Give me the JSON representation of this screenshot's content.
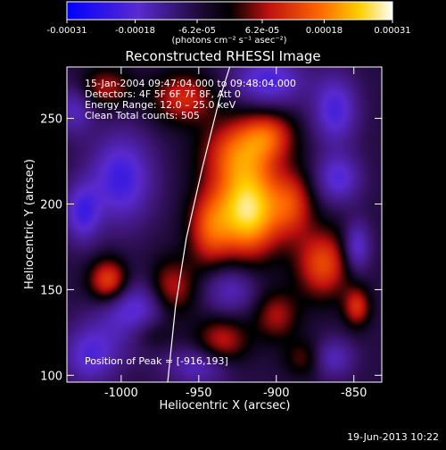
{
  "colorbar": {
    "ticks": [
      "-0.00031",
      "-0.00018",
      "-6.2e-05",
      "6.2e-05",
      "0.00018",
      "0.00031"
    ],
    "tick_values": [
      -0.00031,
      -0.00018,
      -6.2e-05,
      6.2e-05,
      0.00018,
      0.00031
    ],
    "range": [
      -0.00031,
      0.00031
    ],
    "units_label": "(photons cm⁻² s⁻¹ asec⁻²)"
  },
  "annotations": {
    "time_range": "15-Jan-2004 09:47:04.000 to 09:48:04.000",
    "detectors": "Detectors: 4F 5F 6F 7F 8F, Att 0",
    "energy": "Energy Range: 12.0 – 25.0 keV",
    "clean": "Clean    Total counts: 505",
    "peak": "Position of Peak = [-916,193]"
  },
  "footer": {
    "timestamp": "19-Jun-2013 10:22"
  },
  "chart_data": {
    "type": "heatmap",
    "title": "Reconstructed RHESSI Image",
    "xlabel": "Heliocentric X (arcsec)",
    "ylabel": "Heliocentric Y (arcsec)",
    "xlim": [
      -1035,
      -832
    ],
    "ylim": [
      96,
      280
    ],
    "xticks": [
      -1000,
      -950,
      -900,
      -850
    ],
    "yticks": [
      100,
      150,
      200,
      250
    ],
    "xtick_labels": [
      "-1000",
      "-950",
      "-900",
      "-850"
    ],
    "ytick_labels": [
      "100",
      "150",
      "200",
      "250"
    ],
    "colormap": "red-temperature (blue → purple → black → red → orange → yellow → white)",
    "peak_position": [
      -916,
      193
    ],
    "limb_curve": [
      [
        -970,
        96
      ],
      [
        -965,
        140
      ],
      [
        -958,
        180
      ],
      [
        -948,
        220
      ],
      [
        -937,
        260
      ],
      [
        -930,
        280
      ]
    ],
    "blobs": [
      {
        "x": -918,
        "y": 196,
        "amp": 1.0,
        "sx": 14,
        "sy": 18
      },
      {
        "x": -925,
        "y": 230,
        "amp": 0.55,
        "sx": 16,
        "sy": 14
      },
      {
        "x": -943,
        "y": 186,
        "amp": 0.5,
        "sx": 10,
        "sy": 16
      },
      {
        "x": -905,
        "y": 240,
        "amp": 0.45,
        "sx": 12,
        "sy": 10
      },
      {
        "x": -890,
        "y": 200,
        "amp": 0.45,
        "sx": 10,
        "sy": 14
      },
      {
        "x": -870,
        "y": 165,
        "amp": 0.55,
        "sx": 12,
        "sy": 14
      },
      {
        "x": -1008,
        "y": 155,
        "amp": 0.6,
        "sx": 9,
        "sy": 9
      },
      {
        "x": -968,
        "y": 150,
        "amp": 0.45,
        "sx": 11,
        "sy": 12
      },
      {
        "x": -982,
        "y": 125,
        "amp": 0.35,
        "sx": 12,
        "sy": 8
      },
      {
        "x": -960,
        "y": 262,
        "amp": 0.45,
        "sx": 14,
        "sy": 10
      },
      {
        "x": -1010,
        "y": 268,
        "amp": 0.35,
        "sx": 12,
        "sy": 8
      },
      {
        "x": -935,
        "y": 120,
        "amp": 0.4,
        "sx": 12,
        "sy": 10
      },
      {
        "x": -900,
        "y": 135,
        "amp": 0.35,
        "sx": 10,
        "sy": 10
      },
      {
        "x": -848,
        "y": 140,
        "amp": 0.45,
        "sx": 6,
        "sy": 8
      },
      {
        "x": -880,
        "y": 110,
        "amp": 0.3,
        "sx": 10,
        "sy": 8
      },
      {
        "x": -1000,
        "y": 215,
        "amp": -0.55,
        "sx": 14,
        "sy": 18
      },
      {
        "x": -1025,
        "y": 195,
        "amp": -0.5,
        "sx": 8,
        "sy": 12
      },
      {
        "x": -990,
        "y": 135,
        "amp": -0.55,
        "sx": 16,
        "sy": 14
      },
      {
        "x": -1020,
        "y": 112,
        "amp": -0.45,
        "sx": 12,
        "sy": 12
      },
      {
        "x": -950,
        "y": 105,
        "amp": -0.35,
        "sx": 14,
        "sy": 8
      },
      {
        "x": -905,
        "y": 272,
        "amp": -0.5,
        "sx": 16,
        "sy": 10
      },
      {
        "x": -862,
        "y": 255,
        "amp": -0.5,
        "sx": 10,
        "sy": 14
      },
      {
        "x": -860,
        "y": 215,
        "amp": -0.45,
        "sx": 10,
        "sy": 10
      },
      {
        "x": -848,
        "y": 175,
        "amp": -0.45,
        "sx": 6,
        "sy": 10
      },
      {
        "x": -930,
        "y": 150,
        "amp": -0.35,
        "sx": 12,
        "sy": 10
      },
      {
        "x": -1030,
        "y": 255,
        "amp": -0.35,
        "sx": 8,
        "sy": 10
      },
      {
        "x": -865,
        "y": 110,
        "amp": -0.4,
        "sx": 10,
        "sy": 8
      }
    ]
  }
}
